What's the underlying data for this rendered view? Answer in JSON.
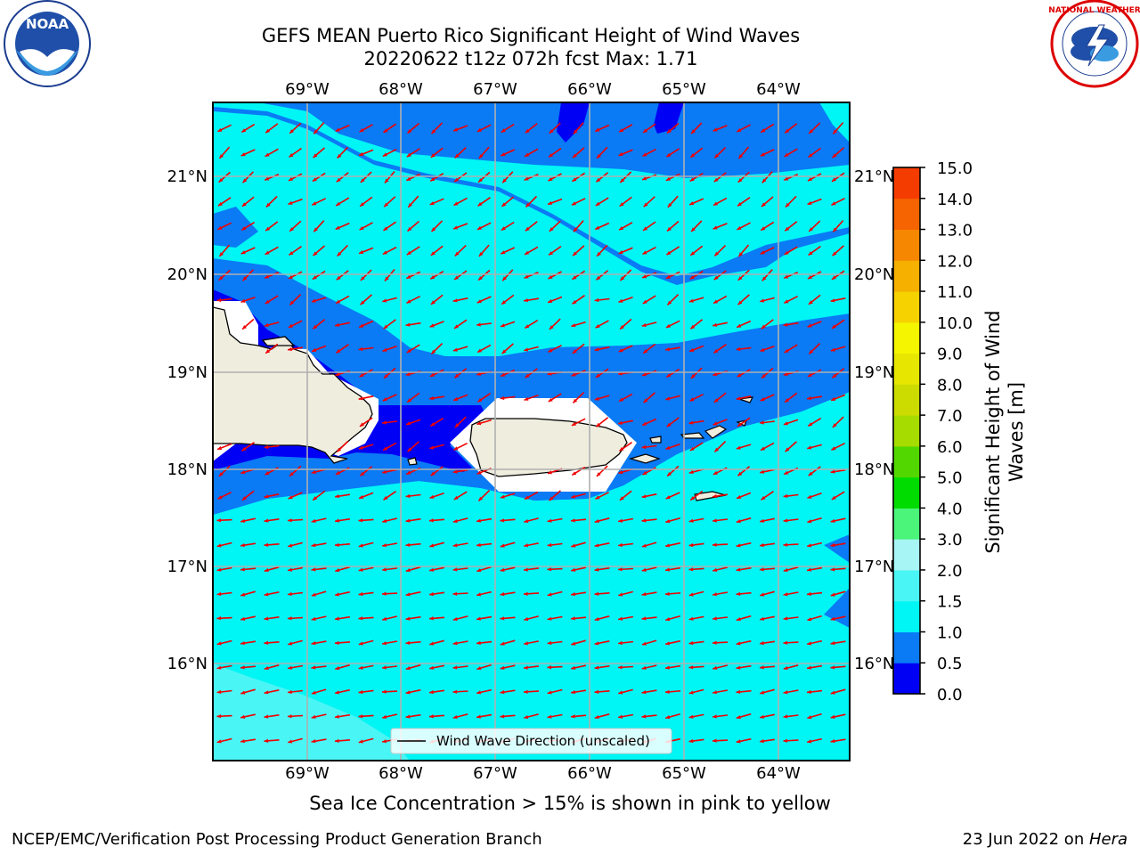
{
  "title": {
    "line1": "GEFS MEAN Puerto Rico Significant Height of Wind Waves",
    "line2": "20220622 t12z 072h fcst   Max: 1.71"
  },
  "axes": {
    "lon_labels": [
      "69°W",
      "68°W",
      "67°W",
      "66°W",
      "65°W",
      "64°W"
    ],
    "lat_labels": [
      "21°N",
      "20°N",
      "19°N",
      "18°N",
      "17°N",
      "16°N"
    ]
  },
  "legend": {
    "label": "Wind Wave Direction (unscaled)"
  },
  "colorbar": {
    "label": "Significant Height of Wind Waves [m]",
    "ticks": [
      "0.0",
      "0.5",
      "1.0",
      "1.5",
      "2.0",
      "3.0",
      "4.0",
      "5.0",
      "6.0",
      "7.0",
      "8.0",
      "9.0",
      "10.0",
      "11.0",
      "12.0",
      "13.0",
      "14.0",
      "15.0"
    ],
    "colors": [
      "#0000f5",
      "#0a7af5",
      "#00f5f5",
      "#4af5f5",
      "#a8f5f5",
      "#4af57a",
      "#00dc00",
      "#52d800",
      "#a6dc00",
      "#ccdc00",
      "#e6e600",
      "#f5f500",
      "#f5d200",
      "#f5b000",
      "#f58800",
      "#f56400",
      "#f53c00",
      "#f50a0a"
    ]
  },
  "field_colors": {
    "deep_blue": "#0000f5",
    "mid_blue": "#0a7af5",
    "cyan": "#00f5f5",
    "light_cyan": "#4af5f5",
    "land": "#efedde",
    "arrow": "#f00000"
  },
  "subnote": "Sea Ice Concentration > 15% is shown in pink to yellow",
  "footer": {
    "left": "NCEP/EMC/Verification Post Processing Product Generation Branch",
    "right_prefix": "23 Jun 2022 on ",
    "right_italic": "Hera"
  },
  "logos": {
    "noaa": "NOAA",
    "nws": "NATIONAL WEATHER SERVICE"
  }
}
